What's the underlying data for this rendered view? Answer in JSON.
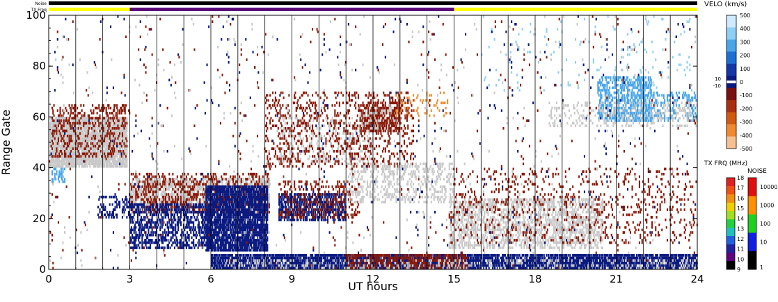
{
  "chart_data": {
    "type": "heatmap",
    "title": "",
    "xlabel": "UT hours",
    "ylabel": "Range Gate",
    "xlim": [
      0,
      24
    ],
    "ylim": [
      0,
      100
    ],
    "x_ticks": [
      "0",
      "3",
      "6",
      "9",
      "12",
      "15",
      "18",
      "21",
      "24"
    ],
    "y_ticks": [
      "0",
      "20",
      "40",
      "60",
      "80",
      "100"
    ],
    "status_bars": {
      "noise_label": "Noise",
      "txfreq_label": "TX Freq",
      "noise_color": "#000000",
      "txfreq_segments": [
        {
          "start": 0,
          "end": 3,
          "color": "#ffff00"
        },
        {
          "start": 3,
          "end": 15,
          "color": "#5a0a7a"
        },
        {
          "start": 15,
          "end": 24,
          "color": "#ffff00"
        }
      ]
    },
    "velocity_colorbar": {
      "label": "VELO (km/s)",
      "ticks": [
        "500",
        "400",
        "300",
        "200",
        "100",
        "0",
        "-100",
        "-200",
        "-300",
        "-400",
        "-500"
      ],
      "side_ticks": [
        "10",
        "-10"
      ],
      "colors": [
        "#cfe9ff",
        "#8ecff5",
        "#4aa6e8",
        "#1c6fd3",
        "#1437a8",
        "#0a1a80",
        "#7a1010",
        "#a83010",
        "#d05a10",
        "#ef8a30",
        "#f7c090"
      ]
    },
    "txfreq_colorbar": {
      "label": "TX FRQ (MHz)",
      "ticks": [
        "18",
        "17",
        "16",
        "15",
        "14",
        "13",
        "12",
        "11",
        "10",
        "9"
      ],
      "colors": [
        "#e02020",
        "#f05010",
        "#f09010",
        "#f0d000",
        "#a0e020",
        "#20d040",
        "#20c0c0",
        "#2060e0",
        "#2020a0",
        "#600080",
        "#000000"
      ]
    },
    "noise_colorbar": {
      "label": "NOISE",
      "ticks": [
        "10000",
        "1000",
        "100",
        "10",
        "1"
      ],
      "colors": [
        "#e01010",
        "#ff9000",
        "#20d020",
        "#1020e0",
        "#000000"
      ]
    },
    "scatter_colors": {
      "ground": "#c8c8c8",
      "neg_strong": "#8a1a08",
      "pos_strong": "#0a1a80",
      "pos_light": "#4aa6e8",
      "pos_pale": "#8ecff5",
      "neg_light": "#ef8a30"
    },
    "regions": [
      {
        "kind": "ground",
        "x": [
          0.05,
          2.9
        ],
        "y": [
          40,
          60
        ],
        "density": 0.85
      },
      {
        "kind": "neg_strong",
        "x": [
          0.1,
          2.9
        ],
        "y": [
          44,
          65
        ],
        "density": 0.25
      },
      {
        "kind": "ground",
        "x": [
          3.0,
          8.2
        ],
        "y": [
          22,
          36
        ],
        "density": 0.55
      },
      {
        "kind": "neg_strong",
        "x": [
          3.0,
          8.2
        ],
        "y": [
          22,
          38
        ],
        "density": 0.25
      },
      {
        "kind": "pos_strong",
        "x": [
          1.8,
          3.0
        ],
        "y": [
          20,
          29
        ],
        "density": 0.25
      },
      {
        "kind": "pos_strong",
        "x": [
          3.0,
          6.0
        ],
        "y": [
          8,
          26
        ],
        "density": 0.45
      },
      {
        "kind": "pos_strong",
        "x": [
          5.8,
          8.1
        ],
        "y": [
          7,
          33
        ],
        "density": 0.8
      },
      {
        "kind": "pos_strong",
        "x": [
          8.5,
          11.0
        ],
        "y": [
          19,
          30
        ],
        "density": 0.55
      },
      {
        "kind": "neg_strong",
        "x": [
          8.5,
          11.5
        ],
        "y": [
          20,
          35
        ],
        "density": 0.2
      },
      {
        "kind": "ground",
        "x": [
          8.5,
          12.0
        ],
        "y": [
          42,
          60
        ],
        "density": 0.18
      },
      {
        "kind": "neg_strong",
        "x": [
          8.0,
          13.5
        ],
        "y": [
          40,
          70
        ],
        "density": 0.15
      },
      {
        "kind": "ground",
        "x": [
          11.5,
          13.0
        ],
        "y": [
          54,
          64
        ],
        "density": 0.45
      },
      {
        "kind": "neg_strong",
        "x": [
          11.5,
          13.0
        ],
        "y": [
          54,
          66
        ],
        "density": 0.4
      },
      {
        "kind": "ground",
        "x": [
          11.0,
          15.0
        ],
        "y": [
          26,
          42
        ],
        "density": 0.25
      },
      {
        "kind": "ground",
        "x": [
          14.8,
          20.5
        ],
        "y": [
          8,
          28
        ],
        "density": 0.4
      },
      {
        "kind": "neg_strong",
        "x": [
          14.8,
          24.0
        ],
        "y": [
          10,
          40
        ],
        "density": 0.08
      },
      {
        "kind": "pos_strong",
        "x": [
          6.0,
          24.0
        ],
        "y": [
          0,
          6
        ],
        "density": 0.75
      },
      {
        "kind": "neg_strong",
        "x": [
          11.0,
          15.5
        ],
        "y": [
          0,
          6
        ],
        "density": 0.5
      },
      {
        "kind": "ground",
        "x": [
          6.5,
          24.0
        ],
        "y": [
          0,
          4
        ],
        "density": 0.15
      },
      {
        "kind": "pos_light",
        "x": [
          20.3,
          22.3
        ],
        "y": [
          58,
          76
        ],
        "density": 0.45
      },
      {
        "kind": "pos_light",
        "x": [
          21.5,
          24.0
        ],
        "y": [
          58,
          70
        ],
        "density": 0.25
      },
      {
        "kind": "ground",
        "x": [
          18.5,
          24.0
        ],
        "y": [
          56,
          66
        ],
        "density": 0.15
      },
      {
        "kind": "pos_pale",
        "x": [
          16.0,
          24.0
        ],
        "y": [
          70,
          100
        ],
        "density": 0.02
      },
      {
        "kind": "neg_light",
        "x": [
          12.8,
          14.8
        ],
        "y": [
          60,
          70
        ],
        "density": 0.12
      },
      {
        "kind": "pos_strong",
        "x": [
          0,
          24
        ],
        "y": [
          0,
          100
        ],
        "density": 0.006
      },
      {
        "kind": "neg_strong",
        "x": [
          0,
          24
        ],
        "y": [
          0,
          100
        ],
        "density": 0.006
      },
      {
        "kind": "ground",
        "x": [
          0,
          24
        ],
        "y": [
          0,
          100
        ],
        "density": 0.006
      },
      {
        "kind": "pos_light",
        "x": [
          0.1,
          0.6
        ],
        "y": [
          34,
          40
        ],
        "density": 0.5
      }
    ]
  }
}
